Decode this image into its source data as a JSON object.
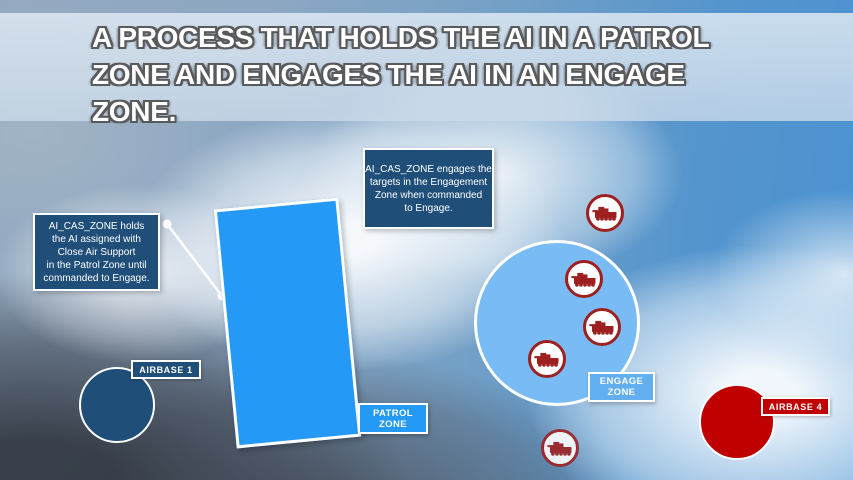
{
  "title": {
    "text": "A PROCESS THAT HOLDS THE AI IN A PATROL\nZONE AND ENGAGES THE AI IN AN ENGAGE\nZONE."
  },
  "callouts": {
    "patrol_hold_note": "AI_CAS_ZONE holds\nthe AI assigned with\nClose Air Support\nin the Patrol Zone until\ncommanded to Engage.",
    "engage_note": "AI_CAS_ZONE engages the\ntargets in the Engagement\nZone when commanded\nto Engage."
  },
  "zones": {
    "patrol": {
      "label": "PATROL\nZONE"
    },
    "engage": {
      "label": "ENGAGE\nZONE"
    }
  },
  "airbases": {
    "airbase_1": {
      "label": "AIRBASE 1"
    },
    "airbase_4": {
      "label": "AIRBASE 4"
    }
  },
  "targets": {
    "icon": "tank-icon",
    "count": 5
  },
  "colors": {
    "navy_box": "#1F4E79",
    "patrol_blue": "#2499F5",
    "engage_blue": "#79BCF5",
    "engage_label_blue": "#61AFEF",
    "airbase_red": "#C00000",
    "target_red": "#9E1F1F",
    "banner_overlay": "#D6E2EE"
  }
}
